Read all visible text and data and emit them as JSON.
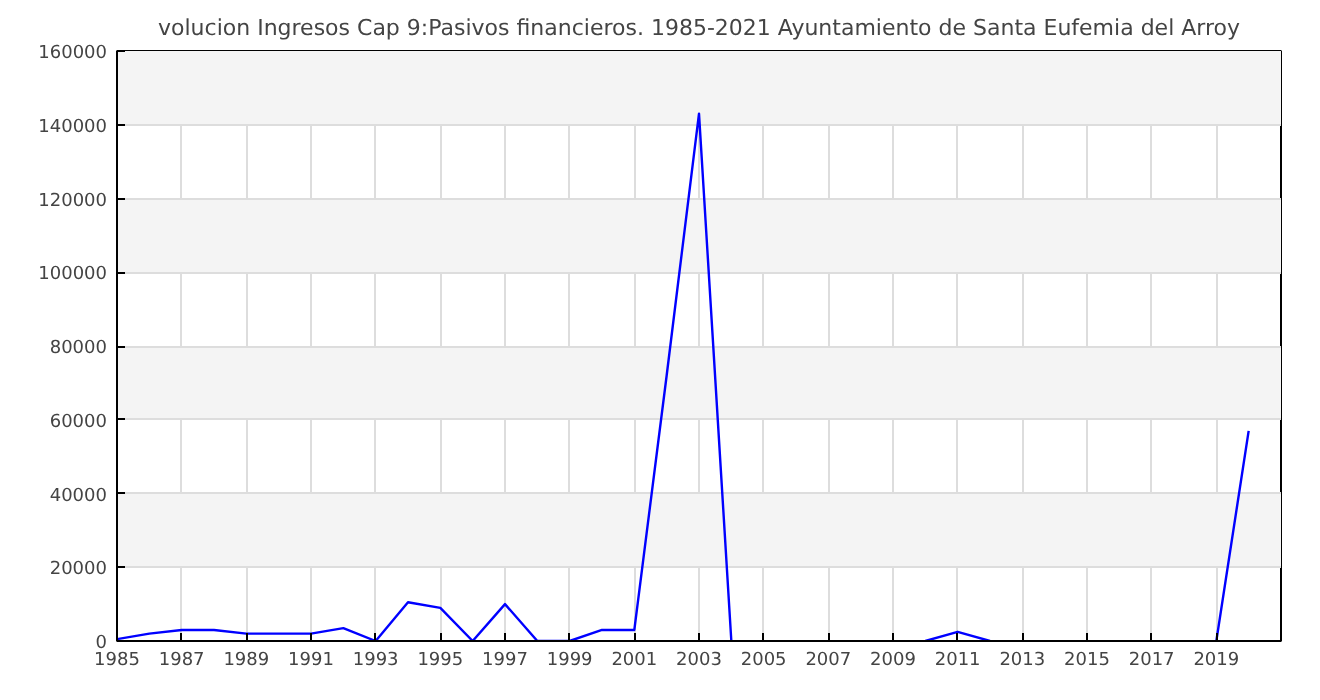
{
  "chart_data": {
    "type": "line",
    "title": "volucion Ingresos Cap 9:Pasivos financieros. 1985-2021 Ayuntamiento de Santa Eufemia del Arroy",
    "x": [
      1985,
      1986,
      1987,
      1988,
      1989,
      1990,
      1991,
      1992,
      1993,
      1994,
      1995,
      1996,
      1997,
      1998,
      1999,
      2000,
      2001,
      2002,
      2003,
      2004,
      2005,
      2006,
      2007,
      2008,
      2009,
      2010,
      2011,
      2012,
      2013,
      2014,
      2015,
      2016,
      2017,
      2018,
      2019,
      2020
    ],
    "series": [
      {
        "color": "#0000ff",
        "values": [
          500,
          2000,
          3000,
          3000,
          2000,
          2000,
          2000,
          3500,
          0,
          10500,
          9000,
          0,
          10000,
          0,
          0,
          3000,
          3000,
          72000,
          143000,
          0,
          null,
          null,
          null,
          null,
          null,
          0,
          2500,
          0,
          null,
          null,
          null,
          null,
          null,
          null,
          0,
          57000
        ]
      }
    ],
    "xlim": [
      1985,
      2021
    ],
    "xticks": [
      1985,
      1987,
      1989,
      1991,
      1993,
      1995,
      1997,
      1999,
      2001,
      2003,
      2005,
      2007,
      2009,
      2011,
      2013,
      2015,
      2017,
      2019
    ],
    "ylim": [
      0,
      160000
    ],
    "yticks": [
      0,
      20000,
      40000,
      60000,
      80000,
      100000,
      120000,
      140000,
      160000
    ],
    "grid": true,
    "marker": "none",
    "line_style": "solid"
  }
}
